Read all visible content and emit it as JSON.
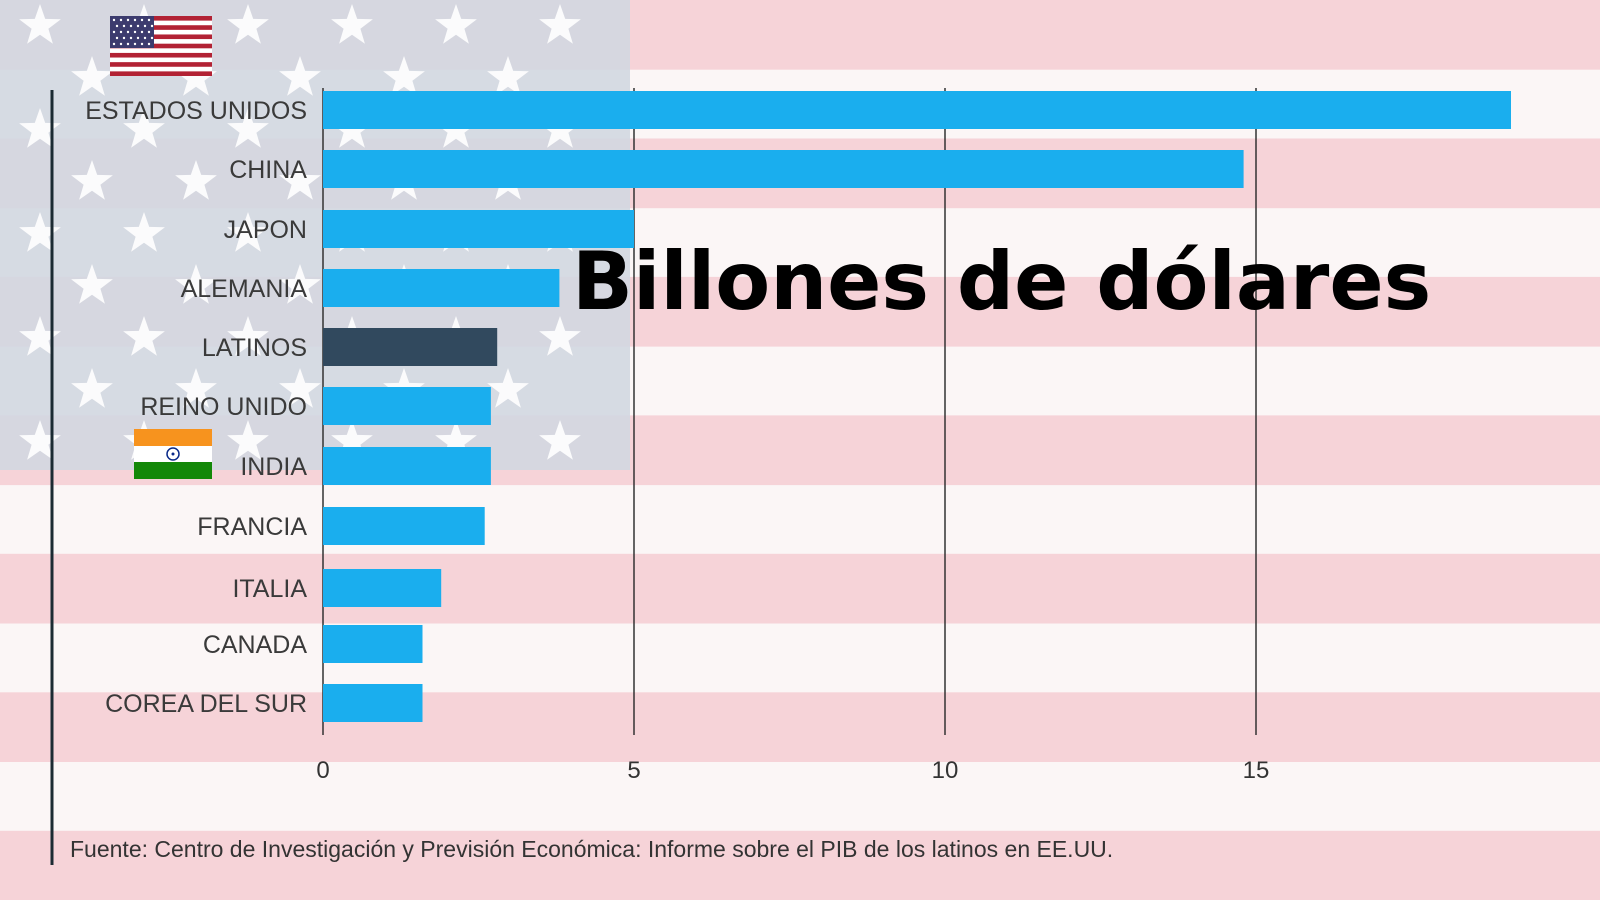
{
  "overlay_title": "Billones de dólares",
  "source": "Fuente: Centro de Investigación y Previsión Económica: Informe sobre el PIB de los latinos en EE.UU.",
  "icons": {
    "top_flag": "usa-flag-icon",
    "india_flag": "india-flag-icon",
    "background": "usa-flag-background"
  },
  "colors": {
    "bar": "#1aaeee",
    "highlight_bar": "#31495e",
    "flag_red": "#f2bcc3",
    "flag_blue": "#c9cfda"
  },
  "chart_data": {
    "type": "bar",
    "orientation": "horizontal",
    "categories": [
      "ESTADOS UNIDOS",
      "CHINA",
      "JAPON",
      "ALEMANIA",
      "LATINOS",
      "REINO UNIDO",
      "INDIA",
      "FRANCIA",
      "ITALIA",
      "CANADA",
      "COREA DEL SUR"
    ],
    "values": [
      19.1,
      14.8,
      5.0,
      3.8,
      2.8,
      2.7,
      2.7,
      2.6,
      1.9,
      1.6,
      1.6
    ],
    "highlight": "LATINOS",
    "xticks": [
      0,
      5,
      10,
      15
    ],
    "xlim": [
      0,
      19.5
    ],
    "grid": "vertical",
    "title": "",
    "xlabel": "",
    "ylabel": ""
  }
}
